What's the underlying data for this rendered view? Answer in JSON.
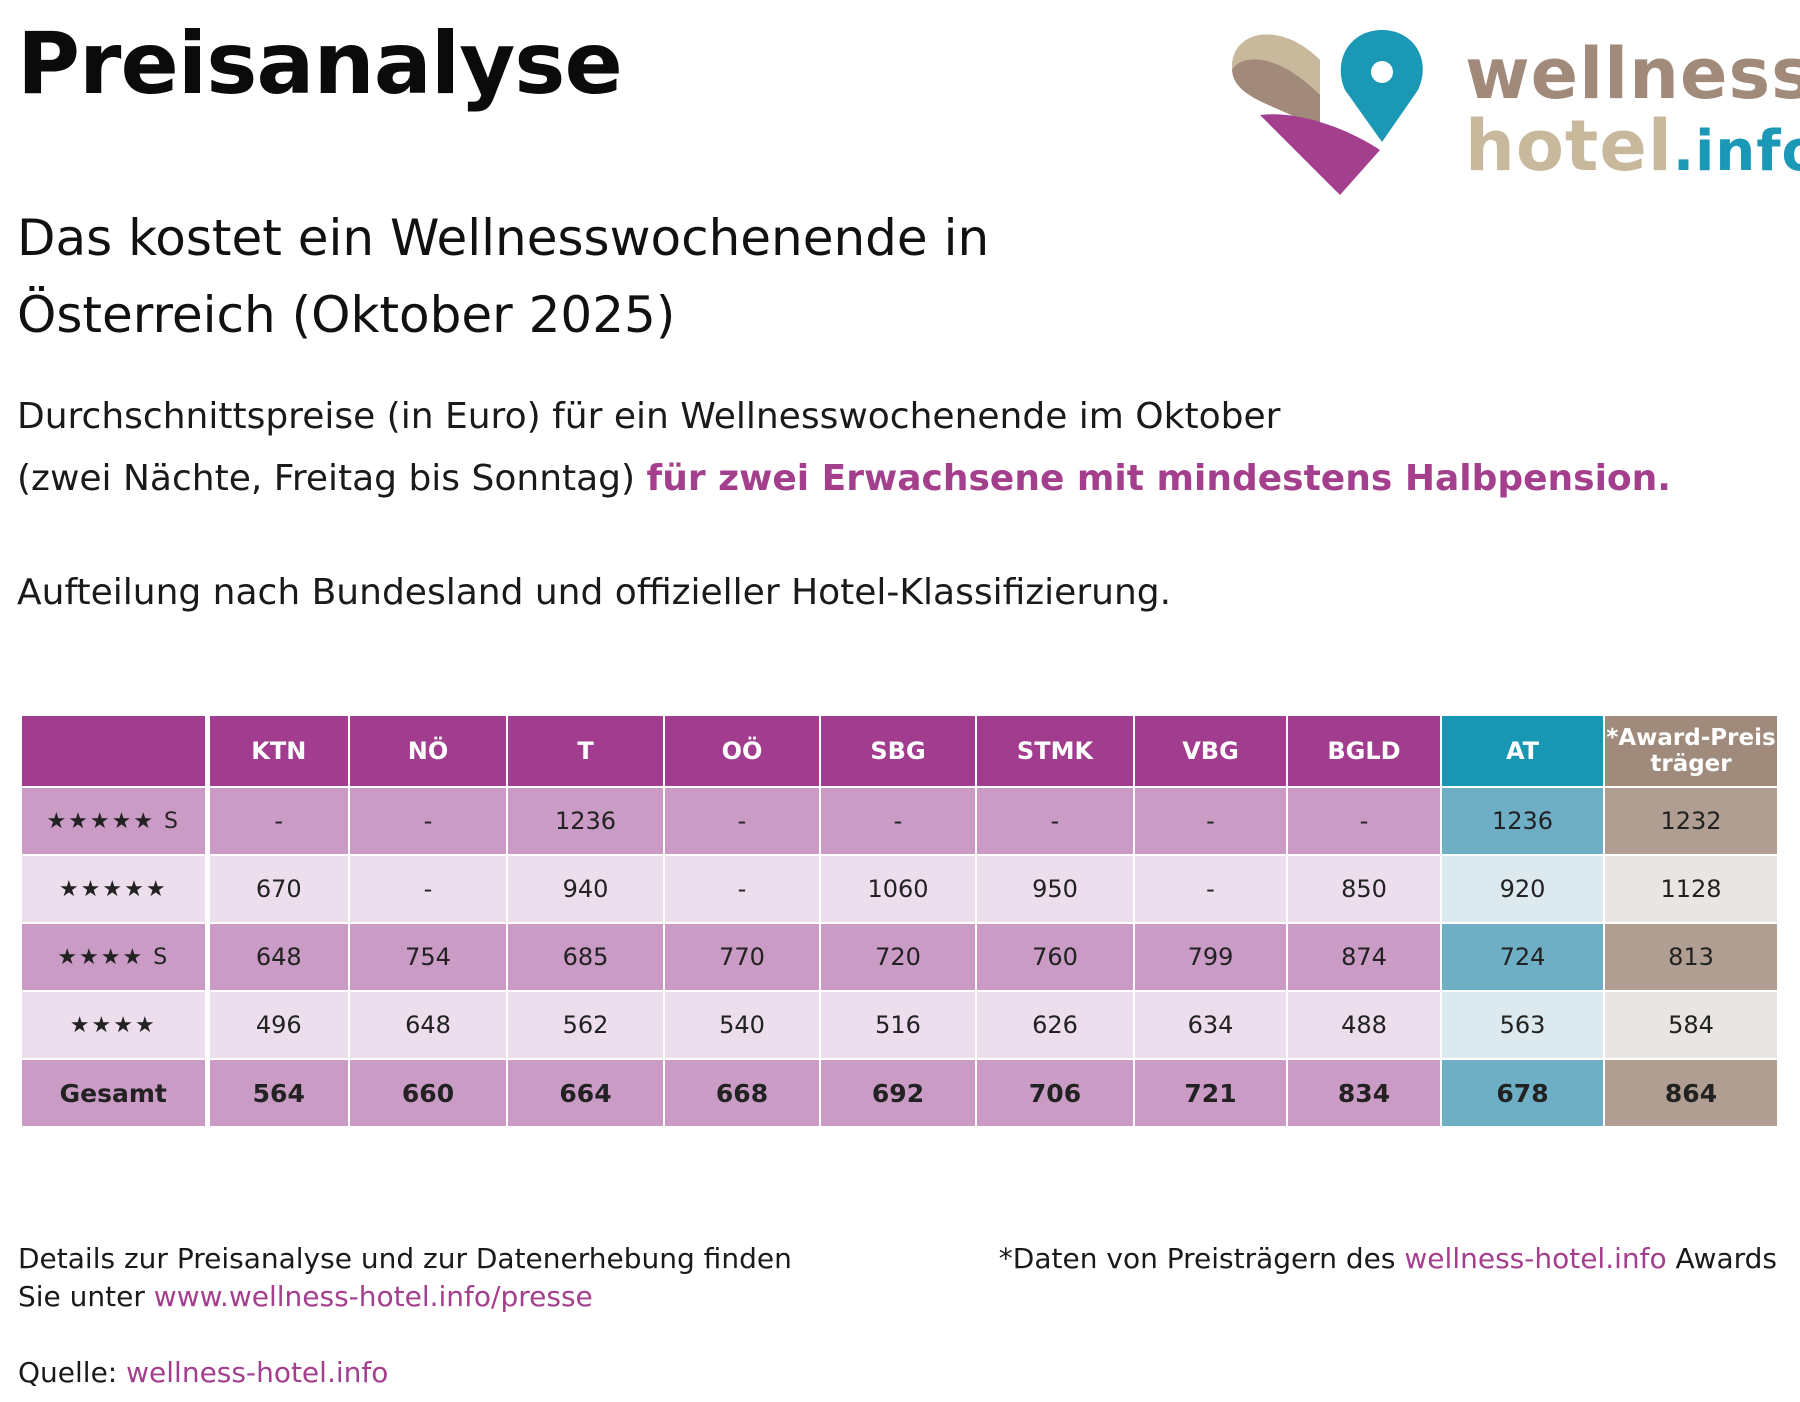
{
  "title": "Preisanalyse",
  "subtitle": {
    "line1": "Das kostet ein Wellnesswochenende in",
    "line2": "Österreich (Oktober 2025)"
  },
  "intro": {
    "line1": "Durchschnittspreise (in Euro) für ein Wellnesswochenende im Oktober",
    "line2_plain": "(zwei Nächte, Freitag bis Sonntag)",
    "line2_highlight": "für zwei Erwachsene mit mindestens Halbpension."
  },
  "split_note": "Aufteilung nach Bundesland und offizieller Hotel-Klassifizierung.",
  "logo": {
    "line1": "wellness-",
    "line2": "hotel",
    "line2_suffix": ".info",
    "colors": {
      "brown": "#a28a7b",
      "beige": "#c8b89c",
      "magenta": "#a43f8e",
      "teal": "#1b98b6"
    }
  },
  "table": {
    "headers": [
      "KTN",
      "NÖ",
      "T",
      "OÖ",
      "SBG",
      "STMK",
      "VBG",
      "BGLD",
      "AT"
    ],
    "award_header_line1": "*Award-Preis",
    "award_header_line2": "träger",
    "rows": [
      {
        "label": "★★★★★ S",
        "values": [
          "-",
          "-",
          "1236",
          "-",
          "-",
          "-",
          "-",
          "-",
          "1236",
          "1232"
        ]
      },
      {
        "label": "★★★★★",
        "values": [
          "670",
          "-",
          "940",
          "-",
          "1060",
          "950",
          "-",
          "850",
          "920",
          "1128"
        ]
      },
      {
        "label": "★★★★ S",
        "values": [
          "648",
          "754",
          "685",
          "770",
          "720",
          "760",
          "799",
          "874",
          "724",
          "813"
        ]
      },
      {
        "label": "★★★★",
        "values": [
          "496",
          "648",
          "562",
          "540",
          "516",
          "626",
          "634",
          "488",
          "563",
          "584"
        ]
      }
    ],
    "total_row": {
      "label": "Gesamt",
      "values": [
        "564",
        "660",
        "664",
        "668",
        "692",
        "706",
        "721",
        "834",
        "678",
        "864"
      ]
    },
    "colors": {
      "header": "#a23c8e",
      "at": "#1897b4",
      "award": "#a08a7c"
    }
  },
  "footer": {
    "left_line1": "Details zur Preisanalyse und zur Datenerhebung finden",
    "left_line2_prefix": "Sie unter",
    "left_link": "www.wellness-hotel.info/presse",
    "right_prefix": "*Daten von Preisträgern des",
    "right_link": "wellness-hotel.info",
    "right_suffix": "Awards",
    "source_label": "Quelle:",
    "source_link": "wellness-hotel.info"
  }
}
